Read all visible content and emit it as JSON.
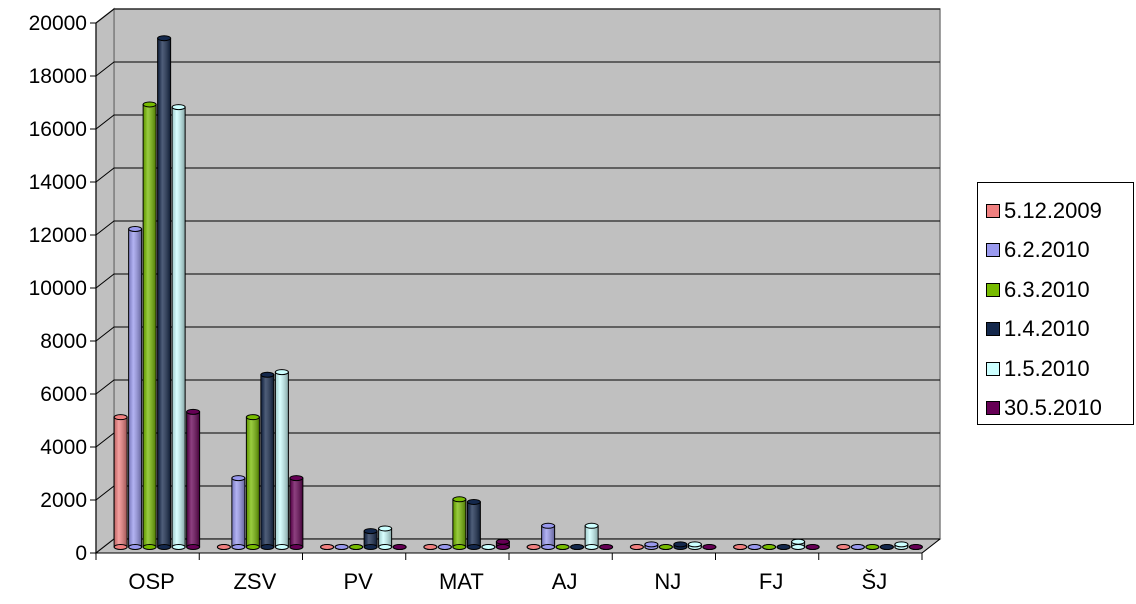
{
  "chart_data": {
    "type": "bar",
    "categories": [
      "OSP",
      "ZSV",
      "PV",
      "MAT",
      "AJ",
      "NJ",
      "FJ",
      "ŠJ"
    ],
    "ylim": [
      0,
      20000
    ],
    "yticks": [
      "0",
      "2000",
      "4000",
      "6000",
      "8000",
      "10000",
      "12000",
      "14000",
      "16000",
      "18000",
      "20000"
    ],
    "grid": true,
    "legend_position": "right",
    "series": [
      {
        "name": "5.12.2009",
        "color": "#f08080",
        "values": [
          4900,
          0,
          0,
          0,
          0,
          0,
          0,
          0
        ]
      },
      {
        "name": "6.2.2010",
        "color": "#9999ee",
        "values": [
          12000,
          2600,
          0,
          0,
          800,
          100,
          0,
          0
        ]
      },
      {
        "name": "6.3.2010",
        "color": "#77bb00",
        "values": [
          16700,
          4900,
          0,
          1800,
          0,
          0,
          0,
          0
        ]
      },
      {
        "name": "1.4.2010",
        "color": "#14284c",
        "values": [
          19200,
          6500,
          600,
          1700,
          0,
          100,
          0,
          0
        ]
      },
      {
        "name": "1.5.2010",
        "color": "#ccffff",
        "values": [
          16600,
          6600,
          700,
          0,
          800,
          100,
          200,
          100
        ]
      },
      {
        "name": "30.5.2010",
        "color": "#660055",
        "values": [
          5100,
          2600,
          0,
          200,
          0,
          0,
          0,
          0
        ]
      }
    ]
  }
}
